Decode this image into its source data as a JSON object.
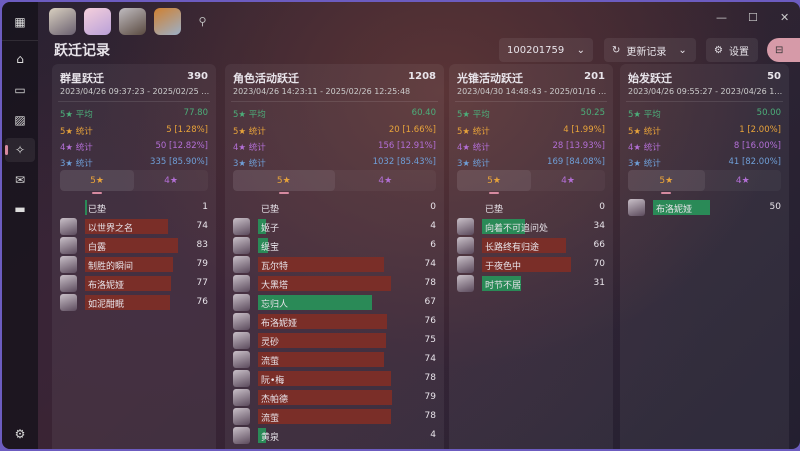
{
  "app": {
    "title": "跃迁记录",
    "uid": "100201759",
    "refresh_label": "更新记录",
    "settings_label": "设置"
  },
  "window_controls": {
    "minimize": "—",
    "maximize": "☐",
    "close": "✕"
  },
  "sidebar": {
    "items": [
      {
        "icon": "grid-icon",
        "glyph": "▦"
      },
      {
        "icon": "home-icon",
        "glyph": "⌂"
      },
      {
        "icon": "gamepad-icon",
        "glyph": "▭"
      },
      {
        "icon": "image-icon",
        "glyph": "▨"
      },
      {
        "icon": "warp-icon",
        "glyph": "✧",
        "active": true
      },
      {
        "icon": "gift-icon",
        "glyph": "✉"
      },
      {
        "icon": "card-icon",
        "glyph": "▬"
      }
    ],
    "settings_glyph": "⚙"
  },
  "colors": {
    "avg": "#4caf7a",
    "five": "#e8a33a",
    "four": "#b36fd6",
    "three": "#6f9fd8",
    "bar_red": "#7a2e28",
    "bar_green": "#2a8a57"
  },
  "labels": {
    "avg": "5★ 平均",
    "five": "5★ 统计",
    "four": "4★ 统计",
    "three": "3★ 统计",
    "tab5": "5★",
    "tab4": "4★"
  },
  "cards": [
    {
      "title": "群星跃迁",
      "total": "390",
      "date": "2023/04/26 09:37:23 - 2025/02/25 19:2...",
      "avg": "77.80",
      "five": "5 [1.28%]",
      "four": "50 [12.82%]",
      "three": "335 [85.90%]",
      "items": [
        {
          "name": "已垫",
          "value": 1,
          "up": true,
          "pity": true
        },
        {
          "name": "以世界之名",
          "value": 74
        },
        {
          "name": "白露",
          "value": 83
        },
        {
          "name": "制胜的瞬间",
          "value": 79
        },
        {
          "name": "布洛妮娅",
          "value": 77
        },
        {
          "name": "如泥酣眠",
          "value": 76
        }
      ]
    },
    {
      "title": "角色活动跃迁",
      "total": "1208",
      "date": "2023/04/26 14:23:11 - 2025/02/26 12:25:48",
      "avg": "60.40",
      "five": "20 [1.66%]",
      "four": "156 [12.91%]",
      "three": "1032 [85.43%]",
      "items": [
        {
          "name": "已垫",
          "value": 0,
          "pity": true
        },
        {
          "name": "姬子",
          "value": 4,
          "up": true
        },
        {
          "name": "缇宝",
          "value": 6,
          "up": true
        },
        {
          "name": "瓦尔特",
          "value": 74
        },
        {
          "name": "大黑塔",
          "value": 78
        },
        {
          "name": "忘归人",
          "value": 67,
          "up": true
        },
        {
          "name": "布洛妮娅",
          "value": 76
        },
        {
          "name": "灵砂",
          "value": 75
        },
        {
          "name": "流萤",
          "value": 74
        },
        {
          "name": "阮•梅",
          "value": 78
        },
        {
          "name": "杰帕德",
          "value": 79
        },
        {
          "name": "流萤",
          "value": 78
        },
        {
          "name": "黄泉",
          "value": 4,
          "up": true
        }
      ]
    },
    {
      "title": "光锥活动跃迁",
      "total": "201",
      "date": "2023/04/30 14:48:43 - 2025/01/16 23:4...",
      "avg": "50.25",
      "five": "4 [1.99%]",
      "four": "28 [13.93%]",
      "three": "169 [84.08%]",
      "items": [
        {
          "name": "已垫",
          "value": 0,
          "pity": true
        },
        {
          "name": "向着不可追问处",
          "value": 34,
          "up": true
        },
        {
          "name": "长路终有归途",
          "value": 66
        },
        {
          "name": "于夜色中",
          "value": 70
        },
        {
          "name": "时节不居",
          "value": 31,
          "up": true
        }
      ]
    },
    {
      "title": "始发跃迁",
      "total": "50",
      "date": "2023/04/26 09:55:27 - 2023/04/26 16:3...",
      "avg": "50.00",
      "five": "1 [2.00%]",
      "four": "8 [16.00%]",
      "three": "41 [82.00%]",
      "items": [
        {
          "name": "布洛妮娅",
          "value": 50,
          "up": true
        }
      ]
    }
  ]
}
